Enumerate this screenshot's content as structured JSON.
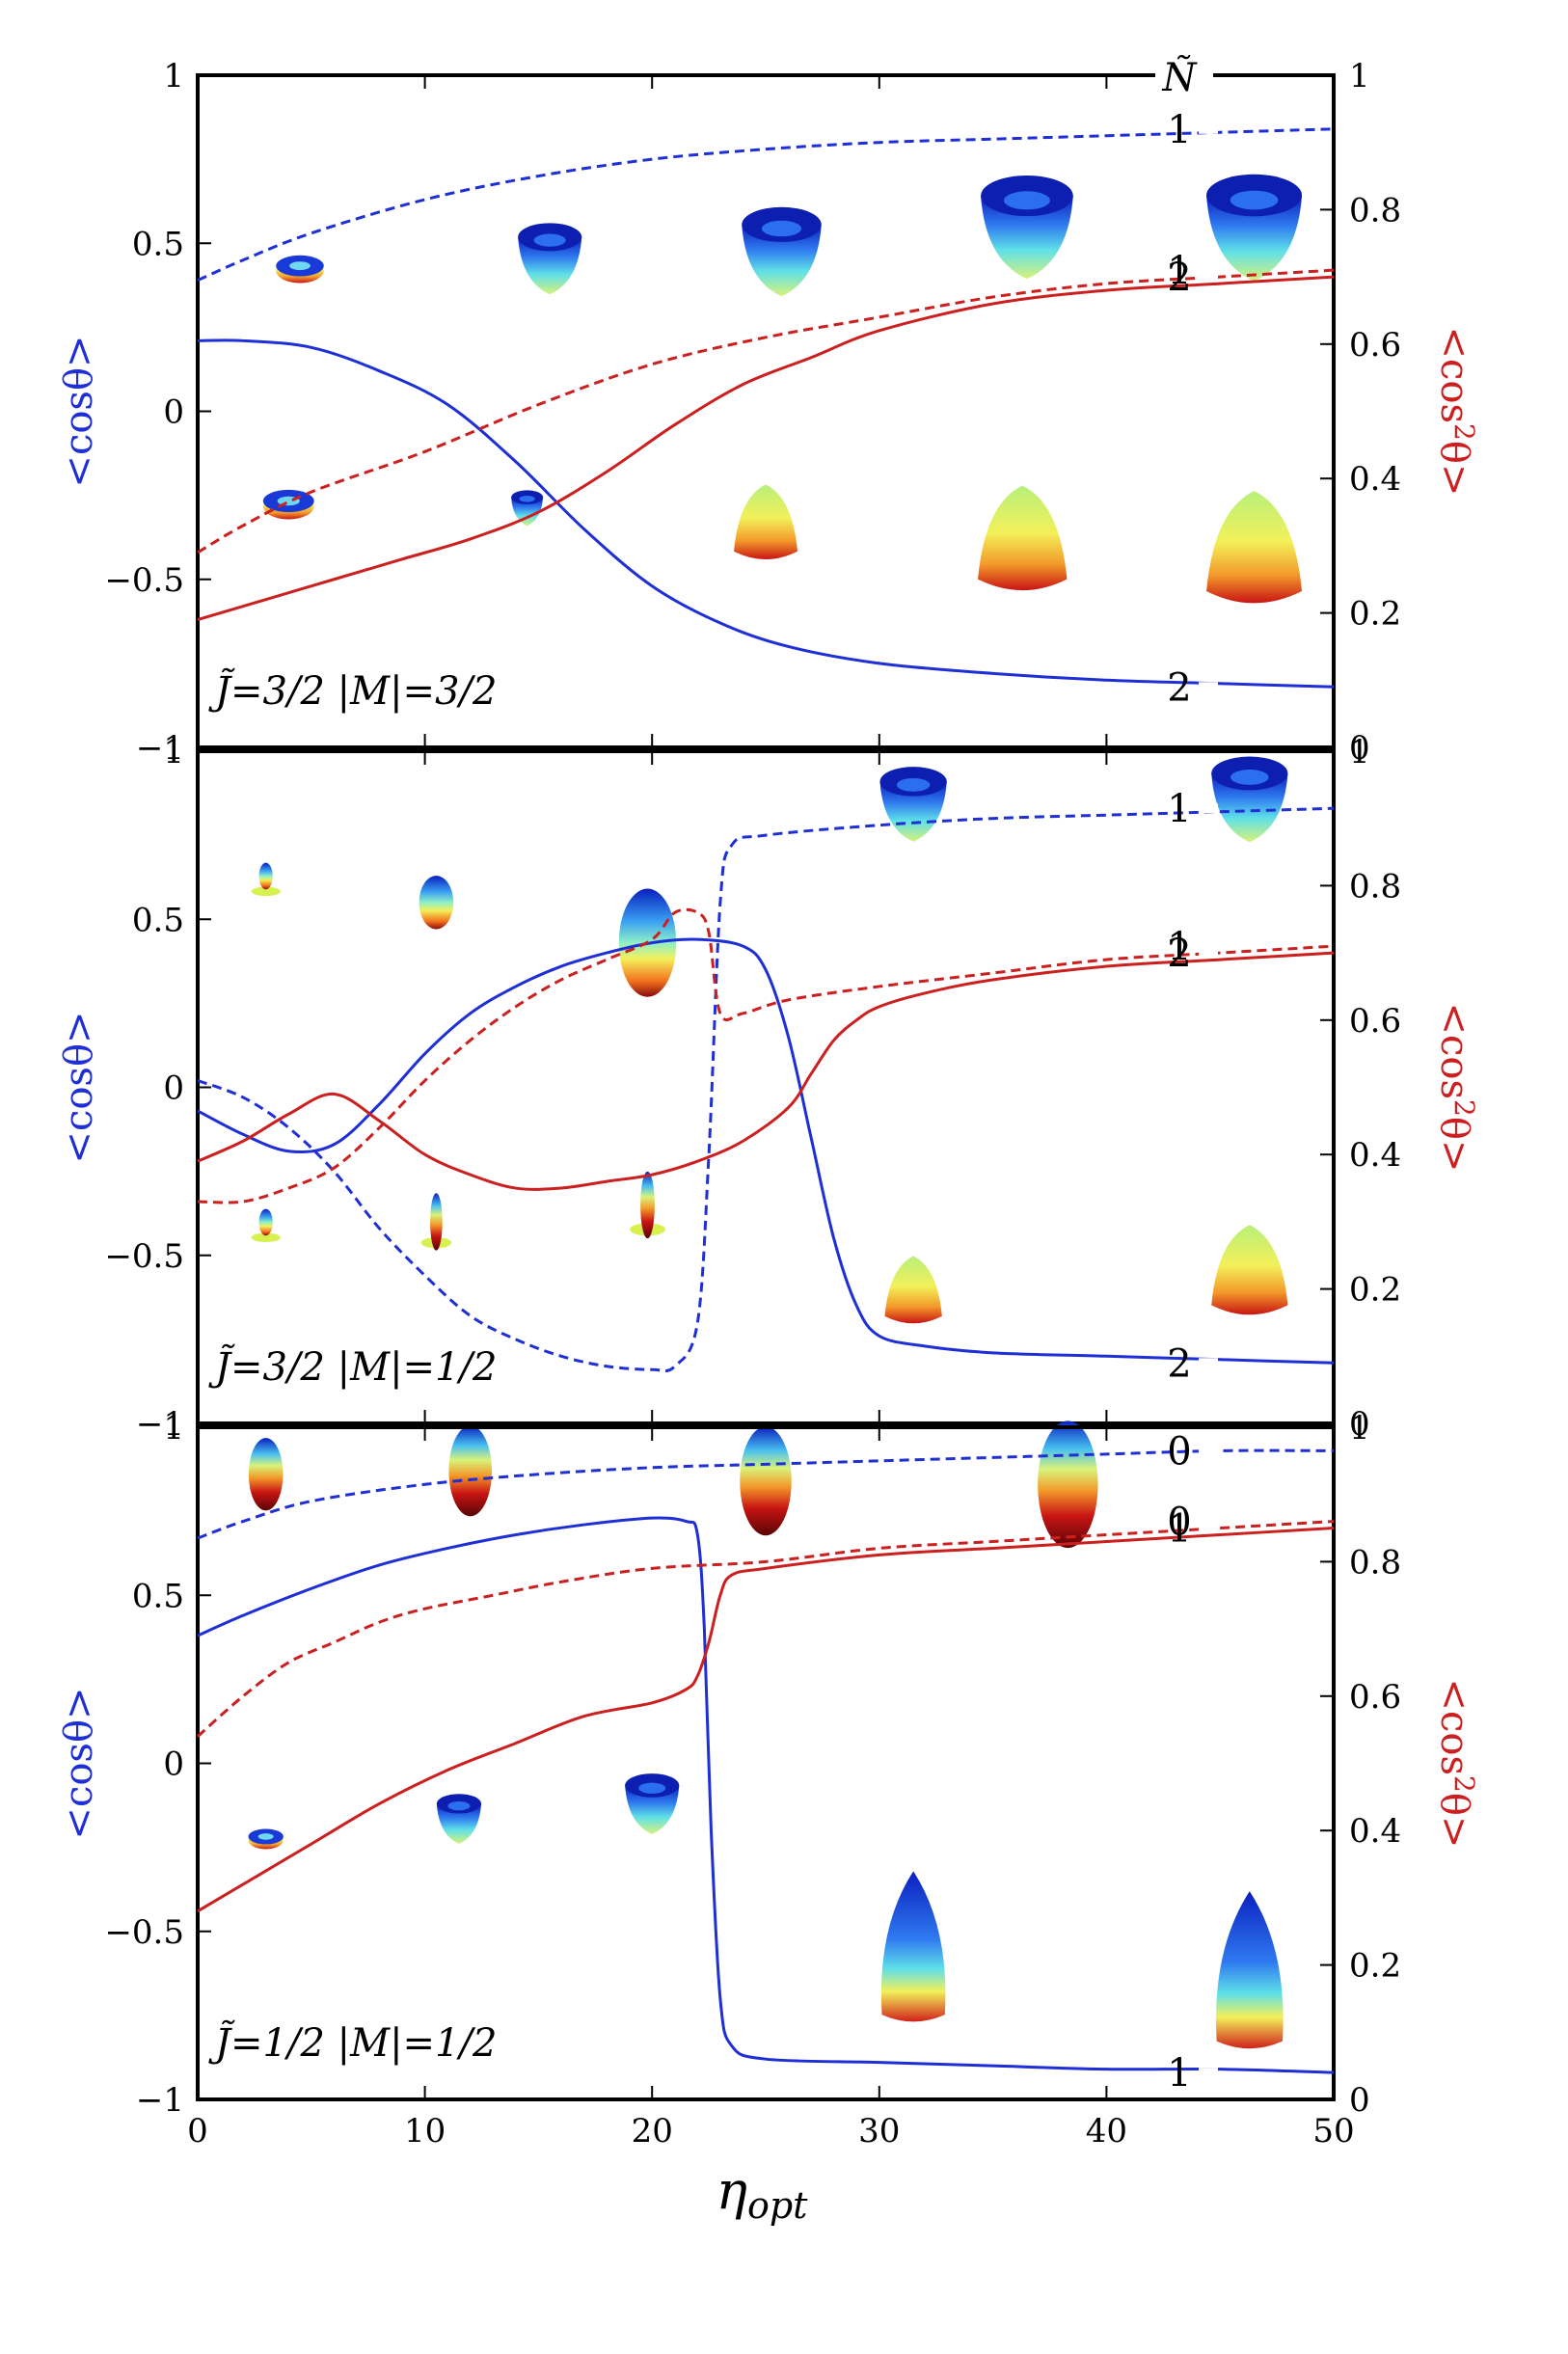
{
  "colors": {
    "blue": "#1f2fd6",
    "red": "#cc1f1f",
    "axis": "#000000"
  },
  "shared": {
    "xlabel_main": "η",
    "xlabel_sub": "opt",
    "xlim": [
      0,
      50
    ],
    "xticks": [
      0,
      10,
      20,
      30,
      40,
      50
    ],
    "left_ticks": [
      1,
      0.5,
      0,
      -0.5,
      -1
    ],
    "left_tick_labels": [
      "1",
      "0.5",
      "0",
      "−0.5",
      "−1"
    ],
    "right_ticks": [
      1,
      0.8,
      0.6,
      0.4,
      0.2,
      0
    ],
    "right_tick_labels": [
      "1",
      "0.8",
      "0.6",
      "0.4",
      "0.2",
      "0"
    ],
    "left_ylabel": "<cosθ>",
    "right_ylabel_pre": "<cos",
    "right_ylabel_sup": "2",
    "right_ylabel_post": "θ>",
    "legend_header": "Ñ"
  },
  "chart_data": [
    {
      "type": "line",
      "panel": "top",
      "panel_label": "J̃=3/2 |M|=3/2",
      "xlabel": "",
      "ylim_left": [
        -1,
        1
      ],
      "ylim_right": [
        0,
        1
      ],
      "series": [
        {
          "name": "<cosθ> Ñ=1",
          "axis": "left",
          "color": "blue",
          "style": "dashed",
          "tag": "1",
          "x": [
            0,
            2,
            5,
            10,
            15,
            20,
            25,
            30,
            35,
            40,
            45,
            50
          ],
          "y": [
            0.39,
            0.45,
            0.53,
            0.63,
            0.7,
            0.75,
            0.78,
            0.8,
            0.81,
            0.82,
            0.83,
            0.84
          ]
        },
        {
          "name": "<cosθ> Ñ=2",
          "axis": "left",
          "color": "blue",
          "style": "solid",
          "tag": "2",
          "x": [
            0,
            2,
            5,
            8,
            11,
            14,
            17,
            20,
            23,
            26,
            30,
            35,
            40,
            45,
            50
          ],
          "y": [
            0.21,
            0.21,
            0.19,
            0.12,
            0.02,
            -0.15,
            -0.35,
            -0.52,
            -0.63,
            -0.7,
            -0.75,
            -0.78,
            -0.8,
            -0.81,
            -0.82
          ]
        },
        {
          "name": "<cos²θ> Ñ=1",
          "axis": "right",
          "color": "red",
          "style": "dashed",
          "tag": "1",
          "x": [
            0,
            2,
            5,
            10,
            15,
            20,
            25,
            30,
            35,
            40,
            45,
            50
          ],
          "y": [
            0.29,
            0.33,
            0.38,
            0.44,
            0.51,
            0.57,
            0.61,
            0.64,
            0.67,
            0.69,
            0.7,
            0.71
          ]
        },
        {
          "name": "<cos²θ> Ñ=2",
          "axis": "right",
          "color": "red",
          "style": "solid",
          "tag": "2",
          "x": [
            0,
            3,
            6,
            9,
            12,
            15,
            18,
            21,
            24,
            27,
            30,
            35,
            40,
            45,
            50
          ],
          "y": [
            0.19,
            0.22,
            0.25,
            0.28,
            0.31,
            0.35,
            0.41,
            0.48,
            0.54,
            0.58,
            0.62,
            0.66,
            0.68,
            0.69,
            0.7
          ]
        }
      ],
      "shapes": [
        {
          "kind": "torus",
          "x": 4.5,
          "y": 0.43,
          "r": 0.15
        },
        {
          "kind": "bowl",
          "x": 15.5,
          "y": 0.49,
          "r": 0.2
        },
        {
          "kind": "bowl",
          "x": 25.7,
          "y": 0.52,
          "r": 0.25
        },
        {
          "kind": "bowl",
          "x": 36.5,
          "y": 0.6,
          "r": 0.29
        },
        {
          "kind": "bowl",
          "x": 46.5,
          "y": 0.6,
          "r": 0.3
        },
        {
          "kind": "torus",
          "x": 4.0,
          "y": -0.27,
          "r": 0.16
        },
        {
          "kind": "smallbowl",
          "x": 14.5,
          "y": -0.27,
          "r": 0.1
        },
        {
          "kind": "dome",
          "x": 25.0,
          "y": -0.36,
          "r": 0.2
        },
        {
          "kind": "dome",
          "x": 36.3,
          "y": -0.42,
          "r": 0.28
        },
        {
          "kind": "dome",
          "x": 46.5,
          "y": -0.45,
          "r": 0.3
        }
      ]
    },
    {
      "type": "line",
      "panel": "middle",
      "panel_label": "J̃=3/2 |M|=1/2",
      "xlabel": "",
      "ylim_left": [
        -1,
        1
      ],
      "ylim_right": [
        0,
        1
      ],
      "series": [
        {
          "name": "<cosθ> Ñ=1",
          "axis": "left",
          "color": "blue",
          "style": "dashed",
          "tag": "1",
          "x": [
            0,
            2,
            4,
            6,
            8,
            10,
            12,
            14,
            16,
            18,
            20,
            21,
            22,
            22.5,
            23,
            23.5,
            25,
            30,
            35,
            40,
            45,
            50
          ],
          "y": [
            0.02,
            -0.03,
            -0.12,
            -0.25,
            -0.42,
            -0.56,
            -0.68,
            -0.75,
            -0.8,
            -0.83,
            -0.84,
            -0.83,
            -0.7,
            -0.2,
            0.55,
            0.72,
            0.75,
            0.78,
            0.8,
            0.81,
            0.82,
            0.83
          ]
        },
        {
          "name": "<cosθ> Ñ=2",
          "axis": "left",
          "color": "blue",
          "style": "solid",
          "tag": "2",
          "x": [
            0,
            2,
            4,
            6,
            8,
            10,
            12,
            14,
            16,
            18,
            20,
            22,
            24,
            25,
            26,
            27,
            28,
            29,
            30,
            32,
            35,
            40,
            45,
            50
          ],
          "y": [
            -0.07,
            -0.14,
            -0.19,
            -0.17,
            -0.05,
            0.1,
            0.22,
            0.3,
            0.36,
            0.4,
            0.43,
            0.44,
            0.42,
            0.35,
            0.15,
            -0.15,
            -0.45,
            -0.65,
            -0.74,
            -0.77,
            -0.79,
            -0.8,
            -0.81,
            -0.82
          ]
        },
        {
          "name": "<cos²θ> Ñ=1",
          "axis": "right",
          "color": "red",
          "style": "dashed",
          "tag": "1",
          "x": [
            0,
            2,
            4,
            6,
            8,
            10,
            12,
            14,
            16,
            18,
            20,
            21,
            22,
            22.5,
            23,
            24,
            26,
            30,
            35,
            40,
            45,
            50
          ],
          "y": [
            0.33,
            0.33,
            0.35,
            0.38,
            0.44,
            0.51,
            0.57,
            0.62,
            0.66,
            0.69,
            0.72,
            0.76,
            0.76,
            0.73,
            0.61,
            0.61,
            0.63,
            0.65,
            0.67,
            0.69,
            0.7,
            0.71
          ]
        },
        {
          "name": "<cos²θ> Ñ=2",
          "axis": "right",
          "color": "red",
          "style": "solid",
          "tag": "2",
          "x": [
            0,
            2,
            4,
            6,
            8,
            10,
            12,
            14,
            16,
            18,
            20,
            22,
            24,
            26,
            27,
            28,
            29,
            30,
            32,
            35,
            40,
            45,
            50
          ],
          "y": [
            0.39,
            0.42,
            0.46,
            0.49,
            0.45,
            0.4,
            0.37,
            0.35,
            0.35,
            0.36,
            0.37,
            0.39,
            0.42,
            0.47,
            0.52,
            0.57,
            0.6,
            0.62,
            0.64,
            0.66,
            0.68,
            0.69,
            0.7
          ]
        }
      ],
      "shapes": [
        {
          "kind": "pinch",
          "x": 3.0,
          "y": 0.6,
          "r": 0.12
        },
        {
          "kind": "egg",
          "x": 10.5,
          "y": 0.55,
          "r": 0.12
        },
        {
          "kind": "egg-big",
          "x": 19.8,
          "y": 0.43,
          "r": 0.2
        },
        {
          "kind": "bowl",
          "x": 31.5,
          "y": 0.88,
          "r": 0.21
        },
        {
          "kind": "bowl",
          "x": 46.3,
          "y": 0.9,
          "r": 0.24
        },
        {
          "kind": "pinch",
          "x": 3.0,
          "y": -0.43,
          "r": 0.12
        },
        {
          "kind": "spike",
          "x": 10.5,
          "y": -0.4,
          "r": 0.12
        },
        {
          "kind": "spike",
          "x": 19.8,
          "y": -0.35,
          "r": 0.14
        },
        {
          "kind": "dome",
          "x": 31.5,
          "y": -0.63,
          "r": 0.18
        },
        {
          "kind": "dome",
          "x": 46.3,
          "y": -0.58,
          "r": 0.24
        }
      ]
    },
    {
      "type": "line",
      "panel": "bottom",
      "panel_label": "J̃=1/2 |M|=1/2",
      "xlabel": "η_opt",
      "ylim_left": [
        -1,
        1
      ],
      "ylim_right": [
        0,
        1
      ],
      "series": [
        {
          "name": "<cosθ> Ñ=0",
          "axis": "left",
          "color": "blue",
          "style": "dashed",
          "tag": "0",
          "x": [
            0,
            2,
            5,
            10,
            15,
            20,
            25,
            30,
            35,
            40,
            45,
            50
          ],
          "y": [
            0.67,
            0.72,
            0.78,
            0.83,
            0.86,
            0.88,
            0.89,
            0.9,
            0.91,
            0.92,
            0.93,
            0.93
          ]
        },
        {
          "name": "<cosθ> Ñ=1",
          "axis": "left",
          "color": "blue",
          "style": "solid",
          "tag": "1",
          "x": [
            0,
            2,
            5,
            8,
            11,
            14,
            17,
            20,
            21.5,
            22,
            22.3,
            22.6,
            23,
            23.5,
            25,
            30,
            35,
            40,
            45,
            50
          ],
          "y": [
            0.38,
            0.44,
            0.52,
            0.59,
            0.64,
            0.68,
            0.71,
            0.73,
            0.72,
            0.68,
            0.4,
            -0.2,
            -0.7,
            -0.84,
            -0.88,
            -0.89,
            -0.9,
            -0.91,
            -0.91,
            -0.92
          ]
        },
        {
          "name": "<cos²θ> Ñ=0",
          "axis": "right",
          "color": "red",
          "style": "dashed",
          "tag": "0",
          "x": [
            0,
            2,
            4,
            6,
            8,
            10,
            13,
            16,
            20,
            25,
            30,
            35,
            40,
            45,
            50
          ],
          "y": [
            0.54,
            0.6,
            0.65,
            0.68,
            0.71,
            0.73,
            0.75,
            0.77,
            0.79,
            0.8,
            0.82,
            0.83,
            0.84,
            0.85,
            0.86
          ]
        },
        {
          "name": "<cos²θ> Ñ=1",
          "axis": "right",
          "color": "red",
          "style": "solid",
          "tag": "1",
          "x": [
            0,
            2,
            5,
            8,
            11,
            14,
            17,
            20,
            21.5,
            22,
            22.5,
            23,
            23.5,
            25,
            30,
            35,
            40,
            45,
            50
          ],
          "y": [
            0.28,
            0.32,
            0.38,
            0.44,
            0.49,
            0.53,
            0.57,
            0.59,
            0.61,
            0.63,
            0.68,
            0.75,
            0.78,
            0.79,
            0.81,
            0.82,
            0.83,
            0.84,
            0.85
          ]
        }
      ],
      "shapes": [
        {
          "kind": "egg-dark",
          "x": 3.0,
          "y": 0.86,
          "r": 0.12
        },
        {
          "kind": "egg-dark",
          "x": 12.0,
          "y": 0.87,
          "r": 0.15
        },
        {
          "kind": "egg-dark",
          "x": 25.0,
          "y": 0.84,
          "r": 0.18
        },
        {
          "kind": "egg-dark",
          "x": 38.3,
          "y": 0.83,
          "r": 0.21
        },
        {
          "kind": "torus",
          "x": 3.0,
          "y": -0.22,
          "r": 0.11
        },
        {
          "kind": "bowl",
          "x": 11.5,
          "y": -0.14,
          "r": 0.14
        },
        {
          "kind": "bowl",
          "x": 20.0,
          "y": -0.09,
          "r": 0.17
        },
        {
          "kind": "egg-up",
          "x": 31.5,
          "y": -0.55,
          "r": 0.22
        },
        {
          "kind": "egg-up",
          "x": 46.3,
          "y": -0.62,
          "r": 0.23
        }
      ]
    }
  ]
}
